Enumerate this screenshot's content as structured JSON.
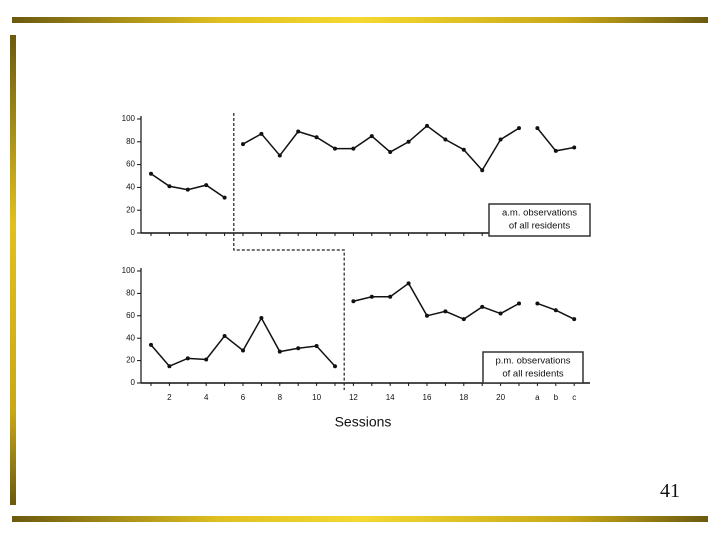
{
  "chart_data": [
    {
      "type": "line",
      "color": "#111111",
      "values": [
        52,
        41,
        38,
        42,
        31,
        78,
        87,
        68,
        89,
        84,
        74,
        74,
        85,
        71,
        80,
        94,
        82,
        73,
        55,
        82,
        92,
        92,
        72,
        75
      ],
      "breaks_after": [
        4,
        20
      ],
      "phase_after": 4,
      "ylim": [
        0,
        100
      ],
      "yticks": [
        0,
        20,
        40,
        60,
        80,
        100
      ],
      "annotation": [
        "a.m. observations",
        "of all residents"
      ]
    },
    {
      "type": "line",
      "color": "#111111",
      "categories": [
        null,
        "2",
        null,
        "4",
        null,
        "6",
        null,
        "8",
        null,
        "10",
        null,
        "12",
        null,
        "14",
        null,
        "16",
        null,
        "18",
        null,
        "20",
        null,
        "a",
        "b",
        "c"
      ],
      "values": [
        34,
        15,
        22,
        21,
        42,
        29,
        58,
        28,
        31,
        33,
        15,
        73,
        77,
        77,
        89,
        60,
        64,
        57,
        68,
        62,
        71,
        71,
        65,
        57
      ],
      "breaks_after": [
        10,
        20
      ],
      "phase_after": 10,
      "ylim": [
        0,
        100
      ],
      "yticks": [
        0,
        20,
        40,
        60,
        80,
        100
      ],
      "xlabel": "Sessions",
      "annotation": [
        "p.m. observations",
        "of all residents"
      ]
    }
  ],
  "slide_number": "41"
}
